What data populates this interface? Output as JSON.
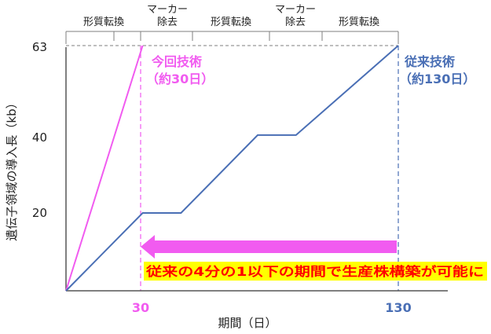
{
  "chart_data": {
    "type": "line",
    "xlabel": "期間（日）",
    "ylabel": "遺伝子領域の導入長（kb）",
    "x_ticks": [
      30,
      130
    ],
    "y_ticks": [
      20,
      40,
      63
    ],
    "xlim": [
      0,
      155
    ],
    "ylim": [
      0,
      63
    ],
    "phase_labels": [
      "形質転換",
      "マーカー除去",
      "形質転換",
      "マーカー除去",
      "形質転換"
    ],
    "series": [
      {
        "name": "今回技術（約30日）",
        "color": "#f15bf0",
        "points": [
          [
            0,
            0
          ],
          [
            30,
            63
          ]
        ]
      },
      {
        "name": "従来技術（約130日）",
        "color": "#4a6fb5",
        "points": [
          [
            0,
            0
          ],
          [
            30,
            20
          ],
          [
            45,
            20
          ],
          [
            75,
            40
          ],
          [
            90,
            40
          ],
          [
            130,
            63
          ]
        ]
      }
    ],
    "annotations": {
      "new_label_line1": "今回技術",
      "new_label_line2": "（約30日）",
      "old_label_line1": "従来技術",
      "old_label_line2": "（約130日）",
      "highlight": "従来の4分の1以下の期間で生産株構築が可能に"
    },
    "colors": {
      "axis": "#555555",
      "guide": "#7f7f7f",
      "arrow": "#f15bf0",
      "highlight_bg": "#ffff00",
      "highlight_text": "#ff0000"
    }
  }
}
